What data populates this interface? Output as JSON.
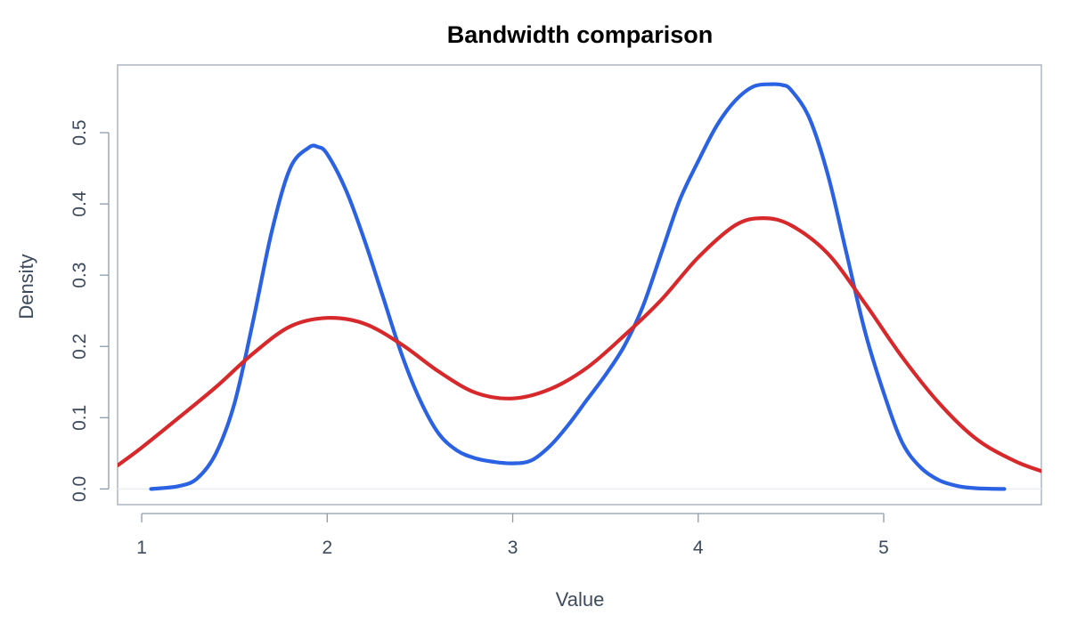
{
  "chart_data": {
    "type": "line",
    "title": "Bandwidth comparison",
    "xlabel": "Value",
    "ylabel": "Density",
    "xlim": [
      0.87,
      5.85
    ],
    "ylim": [
      -0.022,
      0.595
    ],
    "x_ticks": [
      1,
      2,
      3,
      4,
      5
    ],
    "x_tick_labels": [
      "1",
      "2",
      "3",
      "4",
      "5"
    ],
    "y_ticks": [
      0.0,
      0.1,
      0.2,
      0.3,
      0.4,
      0.5
    ],
    "y_tick_labels": [
      "0.0",
      "0.1",
      "0.2",
      "0.3",
      "0.4",
      "0.5"
    ],
    "grid": false,
    "legend": "none",
    "series": [
      {
        "color": "#2b62e3",
        "x": [
          1.05,
          1.2,
          1.3,
          1.4,
          1.5,
          1.6,
          1.7,
          1.8,
          1.9,
          1.95,
          2.0,
          2.1,
          2.2,
          2.3,
          2.4,
          2.5,
          2.6,
          2.7,
          2.8,
          2.9,
          3.0,
          3.1,
          3.2,
          3.3,
          3.4,
          3.5,
          3.6,
          3.7,
          3.8,
          3.9,
          4.0,
          4.1,
          4.2,
          4.3,
          4.4,
          4.45,
          4.5,
          4.6,
          4.7,
          4.8,
          4.9,
          5.0,
          5.1,
          5.2,
          5.3,
          5.4,
          5.5,
          5.65
        ],
        "y": [
          0.0,
          0.004,
          0.015,
          0.05,
          0.12,
          0.235,
          0.36,
          0.45,
          0.479,
          0.48,
          0.47,
          0.42,
          0.35,
          0.27,
          0.19,
          0.125,
          0.078,
          0.054,
          0.043,
          0.038,
          0.036,
          0.04,
          0.06,
          0.09,
          0.125,
          0.16,
          0.2,
          0.255,
          0.33,
          0.405,
          0.46,
          0.51,
          0.545,
          0.565,
          0.568,
          0.567,
          0.56,
          0.52,
          0.44,
          0.33,
          0.22,
          0.135,
          0.065,
          0.03,
          0.012,
          0.004,
          0.001,
          0.0
        ]
      },
      {
        "color": "#d7292b",
        "x": [
          0.87,
          1.0,
          1.2,
          1.4,
          1.6,
          1.8,
          2.0,
          2.2,
          2.4,
          2.6,
          2.8,
          3.0,
          3.2,
          3.4,
          3.6,
          3.8,
          4.0,
          4.2,
          4.35,
          4.5,
          4.7,
          4.9,
          5.1,
          5.3,
          5.5,
          5.7,
          5.85
        ],
        "y": [
          0.033,
          0.058,
          0.1,
          0.143,
          0.19,
          0.228,
          0.24,
          0.232,
          0.203,
          0.165,
          0.135,
          0.127,
          0.14,
          0.17,
          0.215,
          0.265,
          0.325,
          0.37,
          0.38,
          0.37,
          0.33,
          0.26,
          0.185,
          0.12,
          0.07,
          0.04,
          0.025
        ]
      }
    ]
  }
}
